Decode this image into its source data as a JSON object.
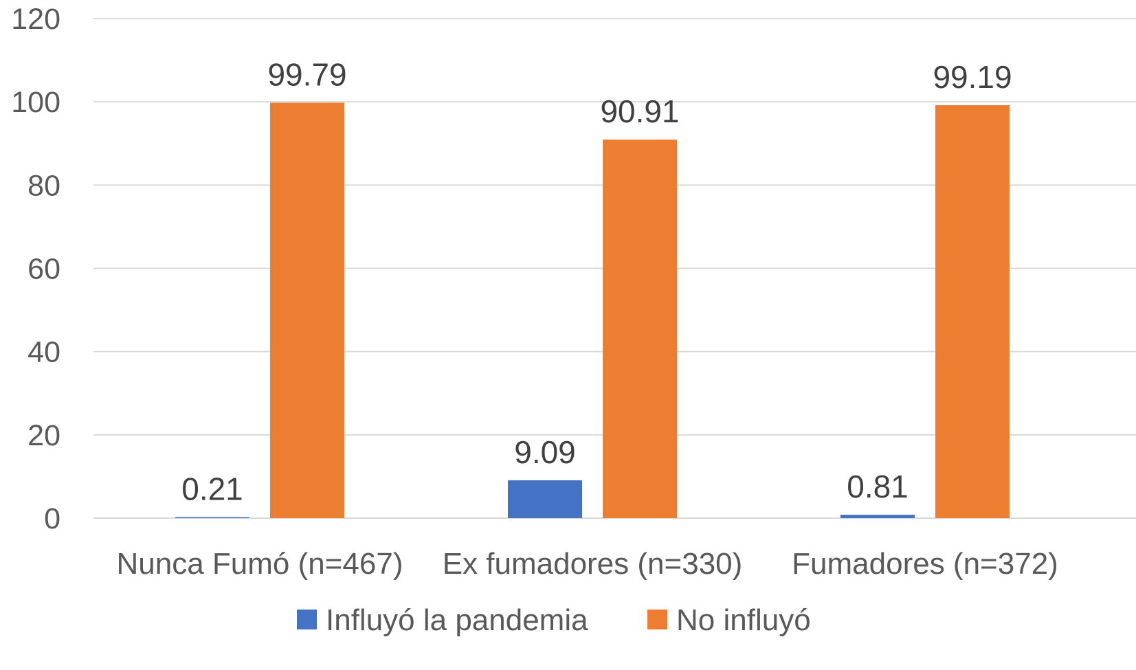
{
  "chart_data": {
    "type": "bar",
    "categories": [
      "Nunca Fumó (n=467)",
      "Ex fumadores (n=330)",
      "Fumadores (n=372)"
    ],
    "series": [
      {
        "name": "Influyó la pandemia",
        "values": [
          0.21,
          9.09,
          0.81
        ],
        "color": "#4472c4"
      },
      {
        "name": "No influyó",
        "values": [
          99.79,
          90.91,
          99.19
        ],
        "color": "#ed7d31"
      }
    ],
    "data_labels": [
      [
        "0.21",
        "9.09",
        "0.81"
      ],
      [
        "99.79",
        "90.91",
        "99.19"
      ]
    ],
    "ylim": [
      0,
      120
    ],
    "yticks": [
      0,
      20,
      40,
      60,
      80,
      100,
      120
    ],
    "ytick_labels": [
      "0",
      "20",
      "40",
      "60",
      "80",
      "100",
      "120"
    ],
    "grid": true,
    "legend_position": "bottom",
    "title": "",
    "xlabel": "",
    "ylabel": "",
    "colors": {
      "grid": "#d9d9d9",
      "tick_text": "#595959",
      "label_text": "#404040"
    }
  }
}
